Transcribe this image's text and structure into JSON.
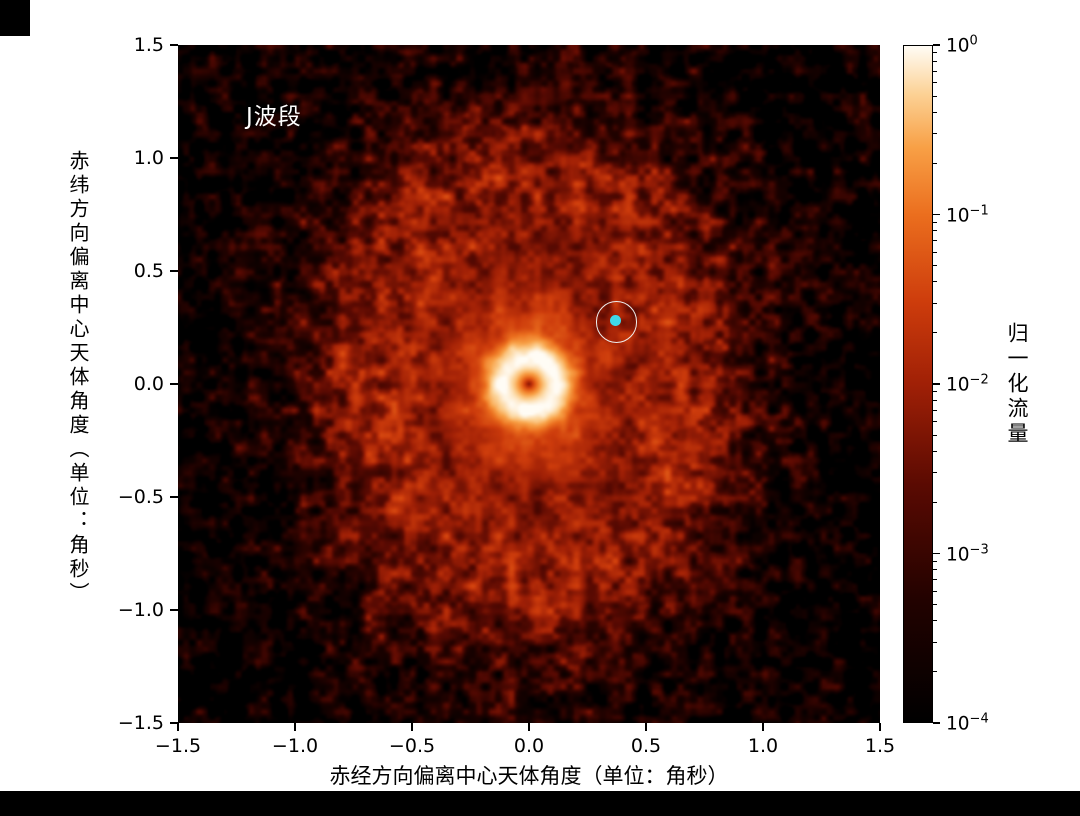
{
  "chart_data": {
    "type": "heatmap",
    "title": "",
    "band_label": "J波段",
    "xlabel": "赤经方向偏离中心天体角度（单位：角秒）",
    "ylabel": "赤纬方向偏离中心天体角度（单位：角秒）",
    "colorbar_label": "归一化流量",
    "xlim": [
      -1.5,
      1.5
    ],
    "ylim": [
      -1.5,
      1.5
    ],
    "xticks": [
      -1.5,
      -1.0,
      -0.5,
      0.0,
      0.5,
      1.0,
      1.5
    ],
    "yticks": [
      1.5,
      1.0,
      0.5,
      0.0,
      -0.5,
      -1.0,
      -1.5
    ],
    "color_scale": "log10",
    "flux_range": [
      0.0001,
      1.0
    ],
    "colorbar_tick_exponents": [
      0,
      -1,
      -2,
      -3,
      -4
    ],
    "colormap_stops": [
      {
        "t": 0.0,
        "color": "#000000"
      },
      {
        "t": 0.18,
        "color": "#220200"
      },
      {
        "t": 0.35,
        "color": "#5a0a02"
      },
      {
        "t": 0.5,
        "color": "#a02006"
      },
      {
        "t": 0.62,
        "color": "#cd3c0c"
      },
      {
        "t": 0.75,
        "color": "#eb6e1e"
      },
      {
        "t": 0.85,
        "color": "#f8a046"
      },
      {
        "t": 0.93,
        "color": "#fcd296"
      },
      {
        "t": 1.0,
        "color": "#fffcf5"
      }
    ],
    "image_model": {
      "central_ring": {
        "radius": 0.115,
        "sigma": 0.04,
        "peak": 1.0
      },
      "central_dip": {
        "depth": 0.9,
        "sigma": 0.035
      },
      "inner_glow": {
        "amplitude": 0.045,
        "sigma": 0.32
      },
      "halo": {
        "amplitude": 0.011,
        "scale": 0.72,
        "axis_ratio_x": 0.82,
        "axis_ratio_y": 1.05,
        "ring_amplitude": 0.0045,
        "ring_radius": 0.82,
        "ring_sigma": 0.15
      },
      "gap": {
        "depth": 0.45,
        "radius": 0.47,
        "sigma": 0.1
      },
      "lane": {
        "depth": 0.4,
        "offset": 0.32,
        "sigma_x": 0.13,
        "sigma_y": 0.1
      },
      "background": 0.00013,
      "noise": {
        "base_dex": 0.3,
        "radial_dex": 0.75,
        "lattice": 0.0556,
        "seed": 7
      }
    },
    "companion_marker": {
      "x": 0.37,
      "y": 0.28,
      "dot_color": "#3fd8e8",
      "dot_radius_arcsec": 0.023,
      "circle_color": "#eeeeee",
      "circle_radius_arcsec": 0.085
    }
  }
}
